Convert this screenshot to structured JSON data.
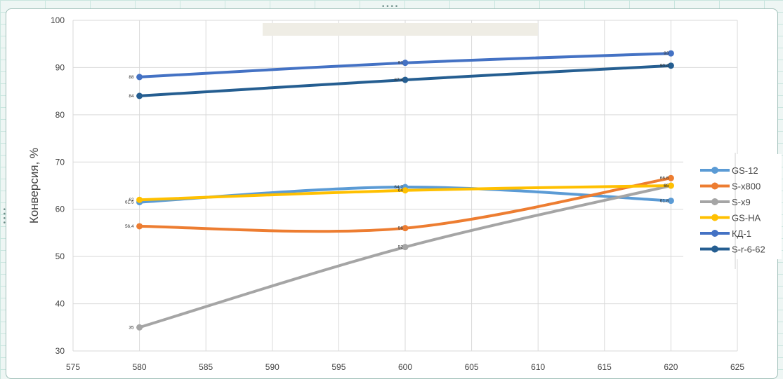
{
  "chart_data": {
    "type": "line",
    "title": "",
    "xlabel": "",
    "ylabel": "Конверсия, %",
    "xlim": [
      575,
      625
    ],
    "ylim": [
      30,
      100
    ],
    "x_ticks": [
      "575",
      "580",
      "585",
      "590",
      "595",
      "600",
      "605",
      "610",
      "615",
      "620",
      "625"
    ],
    "y_ticks": [
      "30",
      "40",
      "50",
      "60",
      "70",
      "80",
      "90",
      "100"
    ],
    "grid": true,
    "legend_position": "right",
    "x": [
      580,
      600,
      620
    ],
    "series": [
      {
        "name": "GS-12",
        "color": "#5b9bd5",
        "values": [
          61.5,
          64.7,
          61.8
        ],
        "labels": [
          "61.5",
          "64.7",
          "61.8"
        ]
      },
      {
        "name": "S-x800",
        "color": "#ed7d31",
        "values": [
          56.4,
          56,
          66.6
        ],
        "labels": [
          "56,4",
          "56",
          "66,6"
        ]
      },
      {
        "name": "S-x9",
        "color": "#a5a5a5",
        "values": [
          35,
          52,
          65
        ],
        "labels": [
          "35",
          "52",
          "65"
        ]
      },
      {
        "name": "GS-HA",
        "color": "#ffc000",
        "values": [
          62,
          64,
          65
        ],
        "labels": [
          "62",
          "64",
          "65"
        ]
      },
      {
        "name": "КД-1",
        "color": "#4472c4",
        "values": [
          88,
          91,
          93
        ],
        "labels": [
          "88",
          "91",
          "93"
        ]
      },
      {
        "name": "S-r-6-62",
        "color": "#255e91",
        "values": [
          84,
          87.4,
          90.4
        ],
        "labels": [
          "84",
          "87.4",
          "90.4"
        ]
      }
    ]
  },
  "handles": {
    "top": "••••",
    "left": "••••"
  }
}
